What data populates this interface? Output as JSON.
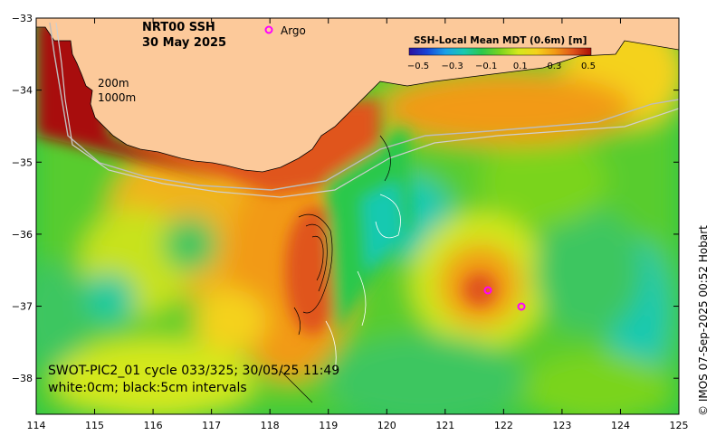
{
  "title": {
    "product": "NRT00 SSH",
    "date": "30 May 2025"
  },
  "legend": {
    "argo_symbol": "o",
    "argo_label": "Argo",
    "depth_200": "200m",
    "depth_1000": "1000m"
  },
  "colorbar": {
    "title": "SSH-Local Mean MDT (0.6m) [m]",
    "ticks": [
      "−0.5",
      "−0.3",
      "−0.1",
      "0.1",
      "0.3",
      "0.5"
    ],
    "colors": [
      "#2a10a0",
      "#1846d8",
      "#1aa0e8",
      "#19c9b0",
      "#2cc84c",
      "#7ad41e",
      "#d4e81c",
      "#f4d21a",
      "#f29a16",
      "#e0541a",
      "#a81008"
    ]
  },
  "annotation": {
    "line1": "SWOT-PIC2_01 cycle 033/325; 30/05/25 11:49",
    "line2": "white:0cm; black:5cm intervals"
  },
  "credit": "©  IMOS 07-Sep-2025 00:52 Hobart",
  "axes": {
    "x_ticks": [
      "114",
      "115",
      "116",
      "117",
      "118",
      "119",
      "120",
      "121",
      "122",
      "123",
      "124",
      "125"
    ],
    "y_ticks": [
      "−33",
      "−34",
      "−35",
      "−36",
      "−37",
      "−38"
    ],
    "x_range": [
      114,
      125
    ],
    "y_range": [
      -38.5,
      -33
    ]
  },
  "colors": {
    "land": "#fcc99a",
    "sea_high": "#a81008",
    "sea_mid": "#f29a16",
    "sea_low": "#2cc84c",
    "argo": "#ff00ff"
  }
}
